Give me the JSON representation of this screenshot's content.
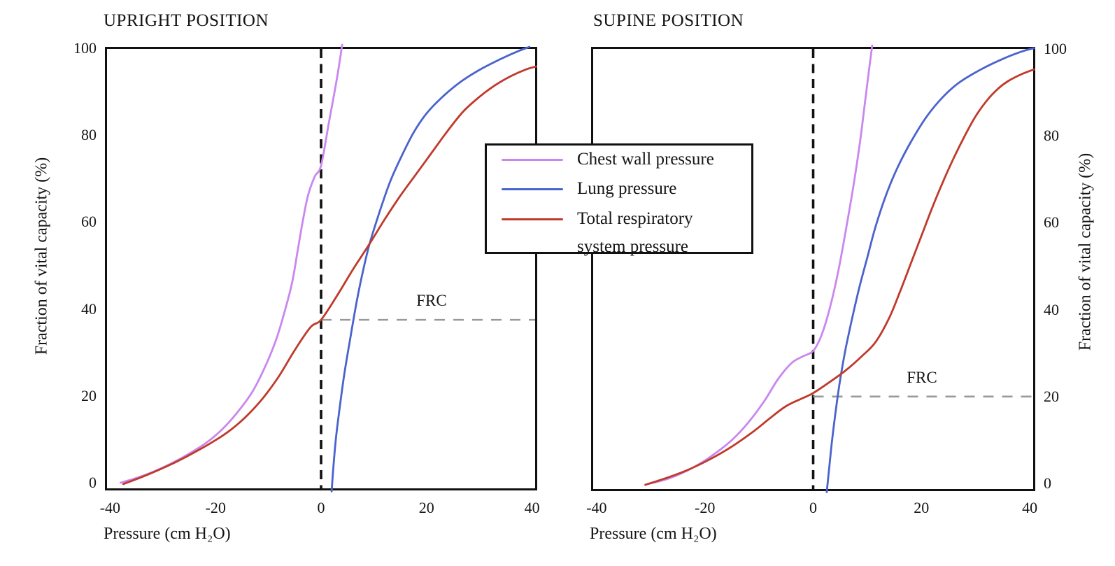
{
  "figure": {
    "background": "#ffffff",
    "text_color": "#151515",
    "frame_color": "#111111",
    "frc_line_color": "#999999"
  },
  "legend": {
    "items": [
      {
        "line1": "Chest wall pressure",
        "color": "#c987ef"
      },
      {
        "line1": "Lung pressure",
        "color": "#4a63cd"
      },
      {
        "line1": "Total respiratory",
        "line2": "system pressure",
        "color": "#bf3a2b"
      }
    ]
  },
  "chart_data": [
    {
      "type": "line",
      "title": "UPRIGHT POSITION",
      "xlabel": "Pressure (cm H₂O)",
      "ylabel": "Fraction of vital capacity (%)",
      "xlim": [
        -41,
        41
      ],
      "ylim": [
        0,
        100
      ],
      "x_ticks": [
        -40,
        -20,
        0,
        20,
        40
      ],
      "y_ticks": [
        0,
        20,
        40,
        60,
        80,
        100
      ],
      "y_axis_side": "left",
      "grid": false,
      "zero_pressure_line": {
        "x": 0,
        "style": "dashed",
        "color": "#111111"
      },
      "frc": {
        "percent": 37.5,
        "label": "FRC",
        "style": "dashed",
        "color": "#999999"
      },
      "series": [
        {
          "name": "Chest wall pressure",
          "color": "#c987ef",
          "points": [
            [
              -38,
              0
            ],
            [
              -34,
              1.5
            ],
            [
              -30,
              3.5
            ],
            [
              -26,
              6
            ],
            [
              -22,
              9
            ],
            [
              -19,
              12
            ],
            [
              -16,
              16
            ],
            [
              -13,
              21
            ],
            [
              -10.5,
              27
            ],
            [
              -8.5,
              33
            ],
            [
              -7,
              39
            ],
            [
              -5.5,
              46
            ],
            [
              -4.5,
              53
            ],
            [
              -3.5,
              60
            ],
            [
              -2.5,
              66
            ],
            [
              -1.2,
              70.5
            ],
            [
              0,
              73
            ],
            [
              1.5,
              83
            ],
            [
              3,
              93
            ],
            [
              4,
              100.8
            ]
          ]
        },
        {
          "name": "Lung pressure",
          "color": "#4a63cd",
          "points": [
            [
              2,
              -2
            ],
            [
              2.3,
              3
            ],
            [
              2.8,
              10
            ],
            [
              3.5,
              17
            ],
            [
              4.4,
              25
            ],
            [
              5.5,
              33
            ],
            [
              6.8,
              42
            ],
            [
              8,
              49
            ],
            [
              9.2,
              55
            ],
            [
              11,
              62
            ],
            [
              13,
              69
            ],
            [
              15,
              74.5
            ],
            [
              17.5,
              80.5
            ],
            [
              20,
              85
            ],
            [
              23,
              88.8
            ],
            [
              26.5,
              92.3
            ],
            [
              30,
              95
            ],
            [
              34,
              97.5
            ],
            [
              37.5,
              99.4
            ],
            [
              39.5,
              100.3
            ]
          ]
        },
        {
          "name": "Total respiratory system pressure",
          "color": "#bf3a2b",
          "points": [
            [
              -37.5,
              -0.3
            ],
            [
              -33,
              1.8
            ],
            [
              -28,
              4.5
            ],
            [
              -24,
              7
            ],
            [
              -20,
              9.8
            ],
            [
              -17,
              12.3
            ],
            [
              -14,
              15.5
            ],
            [
              -11,
              19.5
            ],
            [
              -8,
              24.5
            ],
            [
              -5,
              30.5
            ],
            [
              -2,
              35.8
            ],
            [
              0,
              37.5
            ],
            [
              3,
              43
            ],
            [
              6,
              49
            ],
            [
              9.2,
              55
            ],
            [
              12,
              60.5
            ],
            [
              15,
              66
            ],
            [
              18,
              71
            ],
            [
              21,
              76
            ],
            [
              24,
              81
            ],
            [
              27,
              85.5
            ],
            [
              30,
              88.8
            ],
            [
              33,
              91.5
            ],
            [
              36,
              93.6
            ],
            [
              39,
              95.2
            ],
            [
              40.8,
              95.8
            ]
          ]
        }
      ]
    },
    {
      "type": "line",
      "title": "SUPINE POSITION",
      "xlabel": "Pressure (cm H₂O)",
      "ylabel": "Fraction of vital capacity (%)",
      "xlim": [
        -41,
        41
      ],
      "ylim": [
        0,
        100
      ],
      "x_ticks": [
        -40,
        -20,
        0,
        20,
        40
      ],
      "y_ticks": [
        0,
        20,
        40,
        60,
        80,
        100
      ],
      "y_axis_side": "right",
      "grid": false,
      "zero_pressure_line": {
        "x": 0,
        "style": "dashed",
        "color": "#111111"
      },
      "frc": {
        "percent": 20,
        "label": "FRC",
        "style": "dashed",
        "color": "#999999"
      },
      "series": [
        {
          "name": "Chest wall pressure",
          "color": "#c987ef",
          "points": [
            [
              -31,
              -0.3
            ],
            [
              -27,
              1
            ],
            [
              -24,
              2.5
            ],
            [
              -21,
              4.5
            ],
            [
              -18,
              7
            ],
            [
              -15,
              10
            ],
            [
              -12,
              14
            ],
            [
              -9,
              19
            ],
            [
              -6.5,
              24
            ],
            [
              -4,
              27.7
            ],
            [
              -2,
              29.2
            ],
            [
              0,
              30.5
            ],
            [
              1.5,
              34
            ],
            [
              3,
              40
            ],
            [
              4.5,
              48
            ],
            [
              6,
              58
            ],
            [
              7.5,
              69
            ],
            [
              8.7,
              79
            ],
            [
              9.6,
              88
            ],
            [
              10.3,
              95
            ],
            [
              10.9,
              100.8
            ]
          ]
        },
        {
          "name": "Lung pressure",
          "color": "#4a63cd",
          "points": [
            [
              2.5,
              -2
            ],
            [
              3,
              4
            ],
            [
              3.5,
              10
            ],
            [
              4.2,
              17
            ],
            [
              5,
              24
            ],
            [
              6,
              31
            ],
            [
              7.2,
              38
            ],
            [
              8.5,
              45
            ],
            [
              10,
              52
            ],
            [
              11.5,
              59
            ],
            [
              13.5,
              66.5
            ],
            [
              15.5,
              72.5
            ],
            [
              18,
              78.5
            ],
            [
              21,
              84.5
            ],
            [
              24,
              89
            ],
            [
              27,
              92.3
            ],
            [
              31,
              95.3
            ],
            [
              35,
              97.7
            ],
            [
              38.5,
              99.4
            ],
            [
              40.8,
              100.2
            ]
          ]
        },
        {
          "name": "Total respiratory system pressure",
          "color": "#bf3a2b",
          "points": [
            [
              -31,
              -0.3
            ],
            [
              -27,
              1.3
            ],
            [
              -23,
              3.2
            ],
            [
              -19,
              5.6
            ],
            [
              -15,
              8.5
            ],
            [
              -11,
              12
            ],
            [
              -8,
              15
            ],
            [
              -5,
              17.8
            ],
            [
              -2,
              19.6
            ],
            [
              0,
              20.8
            ],
            [
              3,
              23.3
            ],
            [
              6,
              26
            ],
            [
              9,
              29.3
            ],
            [
              11.5,
              32.5
            ],
            [
              14,
              38
            ],
            [
              16,
              44
            ],
            [
              18,
              50.5
            ],
            [
              20,
              57
            ],
            [
              22,
              63.5
            ],
            [
              24,
              69.5
            ],
            [
              26,
              75
            ],
            [
              28,
              80
            ],
            [
              30,
              84.5
            ],
            [
              32,
              88
            ],
            [
              34,
              90.7
            ],
            [
              36,
              92.6
            ],
            [
              38.5,
              94.2
            ],
            [
              40.8,
              95.3
            ]
          ]
        }
      ]
    }
  ]
}
